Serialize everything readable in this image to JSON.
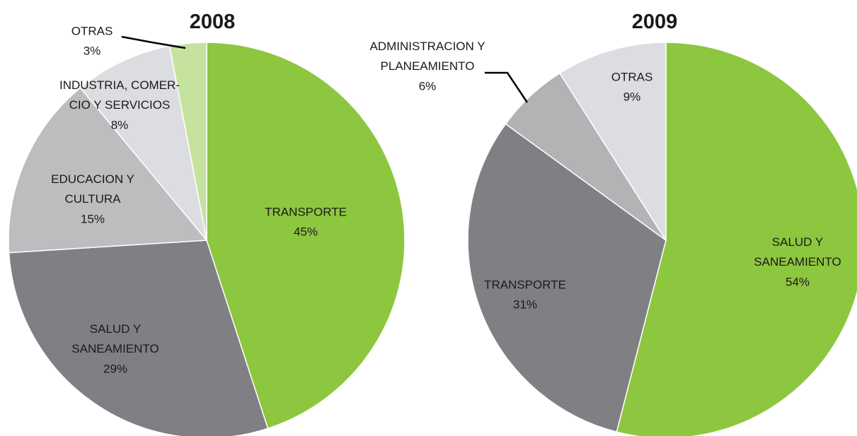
{
  "chart_data": [
    {
      "type": "pie",
      "title": "2008",
      "categories": [
        "TRANSPORTE",
        "SALUD Y\nSANEAMIENTO",
        "EDUCACION Y\nCULTURA",
        "INDUSTRIA, COMER-\nCIO Y SERVICIOS",
        "OTRAS"
      ],
      "values": [
        45,
        29,
        15,
        8,
        3
      ],
      "value_labels": [
        "45%",
        "29%",
        "15%",
        "8%",
        "3%"
      ],
      "colors": [
        "#8dc63f",
        "#808084",
        "#bdbdbf",
        "#dcdde0",
        "#c5e39e"
      ]
    },
    {
      "type": "pie",
      "title": "2009",
      "categories": [
        "SALUD Y\nSANEAMIENTO",
        "TRANSPORTE",
        "ADMINISTRACION Y\nPLANEAMIENTO",
        "OTRAS"
      ],
      "values": [
        54,
        31,
        6,
        9
      ],
      "value_labels": [
        "54%",
        "31%",
        "6%",
        "9%"
      ],
      "colors": [
        "#8dc63f",
        "#808084",
        "#b3b3b5",
        "#dcdde0"
      ]
    }
  ]
}
